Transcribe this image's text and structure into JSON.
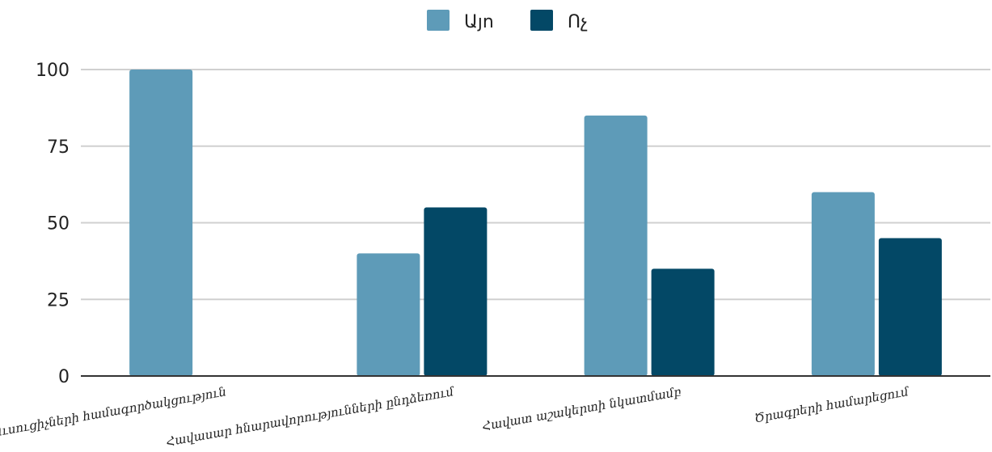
{
  "chart_data": {
    "type": "bar",
    "title": "",
    "xlabel": "",
    "ylabel": "",
    "categories": [
      "Ուսուցիչների համագործակցություն",
      "Հավասար հնարավորությունների ընդձեռում",
      "Հավատ աշակերտի նկատմամբ",
      "Ծրագրերի համարեցում"
    ],
    "series": [
      {
        "name": "Այո",
        "color": "#5e9bb8",
        "values": [
          100,
          40,
          85,
          60
        ]
      },
      {
        "name": "Ոչ",
        "color": "#034866",
        "values": [
          0,
          55,
          35,
          45
        ]
      }
    ],
    "ylim": [
      0,
      100
    ],
    "yticks": [
      0,
      25,
      50,
      75,
      100
    ],
    "grid": true,
    "legend_position": "top-center"
  }
}
